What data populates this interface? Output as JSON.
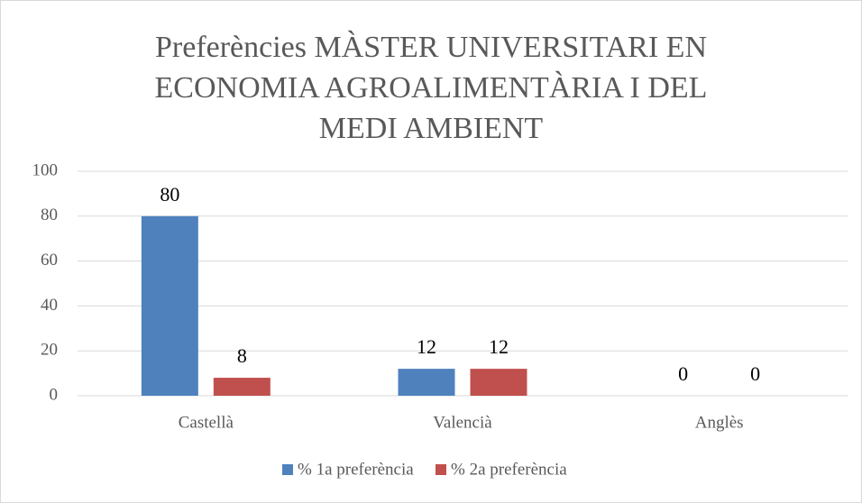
{
  "chart_data": {
    "type": "bar",
    "title": "Preferències MÀSTER UNIVERSITARI EN ECONOMIA AGROALIMENTÀRIA I DEL MEDI AMBIENT",
    "categories": [
      "Castellà",
      "Valencià",
      "Anglès"
    ],
    "series": [
      {
        "name": "% 1a preferència",
        "color": "#4f81bd",
        "values": [
          80,
          12,
          0
        ]
      },
      {
        "name": "% 2a preferència",
        "color": "#c0504d",
        "values": [
          8,
          12,
          0
        ]
      }
    ],
    "ylim": [
      0,
      100
    ],
    "yticks": [
      0,
      20,
      40,
      60,
      80,
      100
    ],
    "grid": true,
    "legend": "bottom"
  }
}
